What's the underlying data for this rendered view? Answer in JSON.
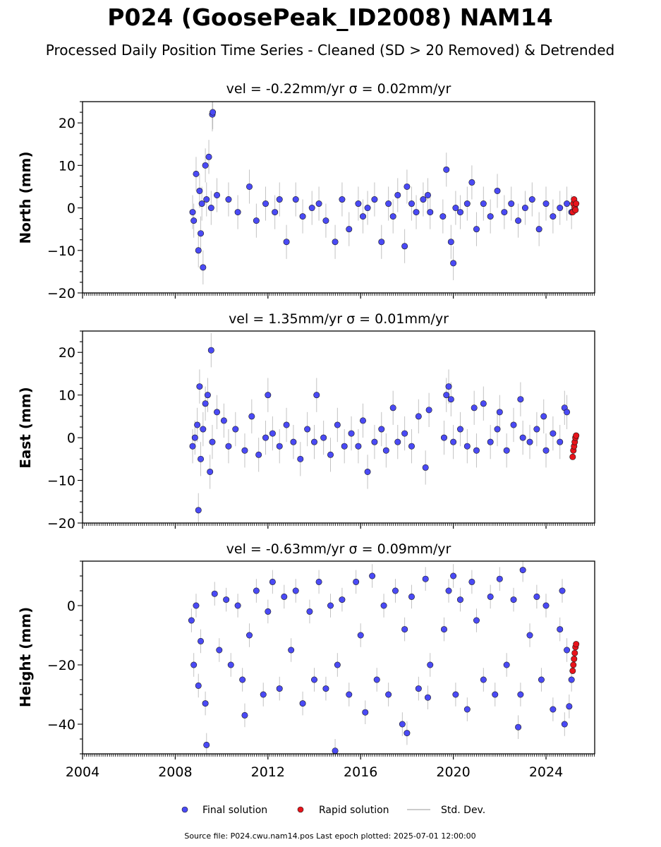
{
  "header": {
    "title": "P024 (GoosePeak_ID2008) NAM14",
    "subtitle": "Processed Daily Position Time Series - Cleaned (SD > 20 Removed) & Detrended"
  },
  "colors": {
    "final": "#4a4af5",
    "rapid": "#e8141b",
    "stddev": "#9a9a9a",
    "edge": "#1a1a1a"
  },
  "legend": {
    "final": "Final solution",
    "rapid": "Rapid solution",
    "std": "Std. Dev."
  },
  "footer": "Source file: P024.cwu.nam14.pos  Last epoch plotted: 2025-07-01 12:00:00",
  "chart_data": [
    {
      "type": "scatter",
      "component": "north",
      "title": "vel = -0.22mm/yr   σ = 0.02mm/yr",
      "ylabel": "North (mm)",
      "xlim": [
        2004.0,
        2026.1
      ],
      "ylim": [
        -20,
        25
      ],
      "yticks": [
        -20,
        -10,
        0,
        10,
        20
      ],
      "xticks": [
        2004,
        2008,
        2012,
        2016,
        2020,
        2024
      ],
      "show_xtick_labels": false,
      "series": [
        {
          "name": "Final solution",
          "x": [
            2008.75,
            2008.8,
            2008.9,
            2009.0,
            2009.05,
            2009.1,
            2009.15,
            2009.2,
            2009.3,
            2009.35,
            2009.45,
            2009.55,
            2009.6,
            2009.62,
            2009.8,
            2010.3,
            2010.7,
            2011.2,
            2011.5,
            2011.9,
            2012.3,
            2012.5,
            2012.8,
            2013.2,
            2013.5,
            2013.9,
            2014.2,
            2014.5,
            2014.9,
            2015.2,
            2015.5,
            2015.9,
            2016.1,
            2016.3,
            2016.6,
            2016.9,
            2017.2,
            2017.4,
            2017.6,
            2017.9,
            2018.0,
            2018.2,
            2018.4,
            2018.7,
            2018.9,
            2019.0,
            2019.55,
            2019.7,
            2019.9,
            2020.0,
            2020.1,
            2020.3,
            2020.6,
            2020.8,
            2021.0,
            2021.3,
            2021.6,
            2021.9,
            2022.2,
            2022.5,
            2022.8,
            2023.1,
            2023.4,
            2023.7,
            2024.0,
            2024.3,
            2024.6,
            2024.9,
            2025.1
          ],
          "y": [
            -1,
            -3,
            8,
            -10,
            4,
            -6,
            1,
            -14,
            10,
            2,
            12,
            0,
            22,
            22.5,
            3,
            2,
            -1,
            5,
            -3,
            1,
            -1,
            2,
            -8,
            2,
            -2,
            0,
            1,
            -3,
            -8,
            2,
            -5,
            1,
            -2,
            0,
            2,
            -8,
            1,
            -2,
            3,
            -9,
            5,
            1,
            -1,
            2,
            3,
            -1,
            -2,
            9,
            -8,
            -13,
            0,
            -1,
            1,
            6,
            -5,
            1,
            -2,
            4,
            -1,
            1,
            -3,
            0,
            2,
            -5,
            1,
            -2,
            0,
            1,
            -1
          ]
        },
        {
          "name": "Rapid solution",
          "x": [
            2025.15,
            2025.18,
            2025.21,
            2025.24,
            2025.27,
            2025.3
          ],
          "y": [
            -1,
            1,
            2,
            0,
            -0.5,
            1
          ]
        }
      ]
    },
    {
      "type": "scatter",
      "component": "east",
      "title": "vel = 1.35mm/yr   σ = 0.01mm/yr",
      "ylabel": "East (mm)",
      "xlim": [
        2004.0,
        2026.1
      ],
      "ylim": [
        -20,
        25
      ],
      "yticks": [
        -20,
        -10,
        0,
        10,
        20
      ],
      "xticks": [
        2004,
        2008,
        2012,
        2016,
        2020,
        2024
      ],
      "show_xtick_labels": false,
      "series": [
        {
          "name": "Final solution",
          "x": [
            2008.75,
            2008.85,
            2008.95,
            2009.0,
            2009.05,
            2009.1,
            2009.2,
            2009.3,
            2009.4,
            2009.5,
            2009.55,
            2009.6,
            2009.8,
            2010.1,
            2010.3,
            2010.6,
            2011.0,
            2011.3,
            2011.6,
            2011.9,
            2012.0,
            2012.2,
            2012.5,
            2012.8,
            2013.1,
            2013.4,
            2013.7,
            2014.0,
            2014.1,
            2014.4,
            2014.7,
            2015.0,
            2015.3,
            2015.6,
            2015.9,
            2016.1,
            2016.3,
            2016.6,
            2016.9,
            2017.1,
            2017.4,
            2017.6,
            2017.9,
            2018.2,
            2018.5,
            2018.8,
            2018.95,
            2019.6,
            2019.7,
            2019.8,
            2019.9,
            2020.0,
            2020.3,
            2020.6,
            2020.9,
            2021.0,
            2021.3,
            2021.6,
            2021.9,
            2022.0,
            2022.3,
            2022.6,
            2022.9,
            2023.0,
            2023.3,
            2023.6,
            2023.9,
            2024.0,
            2024.3,
            2024.6,
            2024.8,
            2024.9
          ],
          "y": [
            -2,
            0,
            3,
            -17,
            12,
            -5,
            2,
            8,
            10,
            -8,
            20.5,
            -1,
            6,
            4,
            -2,
            2,
            -3,
            5,
            -4,
            0,
            10,
            1,
            -2,
            3,
            -1,
            -5,
            2,
            -1,
            10,
            0,
            -4,
            3,
            -2,
            1,
            -2,
            4,
            -8,
            -1,
            2,
            -3,
            7,
            -1,
            1,
            -2,
            5,
            -7,
            6.5,
            0,
            10,
            12,
            9,
            -1,
            2,
            -2,
            7,
            -3,
            8,
            -1,
            2,
            6,
            -3,
            3,
            9,
            0,
            -1,
            2,
            5,
            -3,
            1,
            -1,
            7,
            6
          ]
        },
        {
          "name": "Rapid solution",
          "x": [
            2025.15,
            2025.18,
            2025.21,
            2025.24,
            2025.27,
            2025.3
          ],
          "y": [
            -4.5,
            -3,
            -2,
            -1,
            0,
            0.5
          ]
        }
      ]
    },
    {
      "type": "scatter",
      "component": "height",
      "title": "vel = -0.63mm/yr   σ = 0.09mm/yr",
      "ylabel": "Height (mm)",
      "xlim": [
        2004.0,
        2026.1
      ],
      "ylim": [
        -50,
        15
      ],
      "yticks": [
        -40,
        -20,
        0
      ],
      "xticks": [
        2004,
        2008,
        2012,
        2016,
        2020,
        2024
      ],
      "show_xtick_labels": true,
      "series": [
        {
          "name": "Final solution",
          "x": [
            2008.7,
            2008.8,
            2008.9,
            2009.0,
            2009.1,
            2009.3,
            2009.35,
            2009.7,
            2009.9,
            2010.2,
            2010.4,
            2010.7,
            2010.9,
            2011.0,
            2011.2,
            2011.5,
            2011.8,
            2012.0,
            2012.2,
            2012.5,
            2012.7,
            2013.0,
            2013.2,
            2013.5,
            2013.8,
            2014.0,
            2014.2,
            2014.5,
            2014.7,
            2014.9,
            2015.0,
            2015.2,
            2015.5,
            2015.8,
            2016.0,
            2016.2,
            2016.5,
            2016.7,
            2017.0,
            2017.2,
            2017.5,
            2017.8,
            2017.9,
            2018.0,
            2018.2,
            2018.5,
            2018.8,
            2018.9,
            2019.0,
            2019.6,
            2019.8,
            2020.0,
            2020.1,
            2020.3,
            2020.6,
            2020.8,
            2021.0,
            2021.3,
            2021.6,
            2021.8,
            2022.0,
            2022.3,
            2022.6,
            2022.8,
            2022.9,
            2023.0,
            2023.3,
            2023.6,
            2023.8,
            2024.0,
            2024.3,
            2024.6,
            2024.7,
            2024.8,
            2024.9,
            2025.0,
            2025.1
          ],
          "y": [
            -5,
            -20,
            0,
            -27,
            -12,
            -33,
            -47,
            4,
            -15,
            2,
            -20,
            0,
            -25,
            -37,
            -10,
            5,
            -30,
            -2,
            8,
            -28,
            3,
            -15,
            5,
            -33,
            -2,
            -25,
            8,
            -28,
            0,
            -49,
            -20,
            2,
            -30,
            8,
            -10,
            -36,
            10,
            -25,
            0,
            -30,
            5,
            -40,
            -8,
            -43,
            3,
            -28,
            9,
            -31,
            -20,
            -8,
            5,
            10,
            -30,
            2,
            -35,
            8,
            -5,
            -25,
            3,
            -30,
            9,
            -20,
            2,
            -41,
            -30,
            12,
            -10,
            3,
            -25,
            0,
            -35,
            -8,
            5,
            -40,
            -15,
            -34,
            -25
          ]
        },
        {
          "name": "Rapid solution",
          "x": [
            2025.15,
            2025.18,
            2025.21,
            2025.24,
            2025.27,
            2025.3
          ],
          "y": [
            -22,
            -20,
            -18,
            -16,
            -14,
            -13
          ]
        }
      ]
    }
  ]
}
